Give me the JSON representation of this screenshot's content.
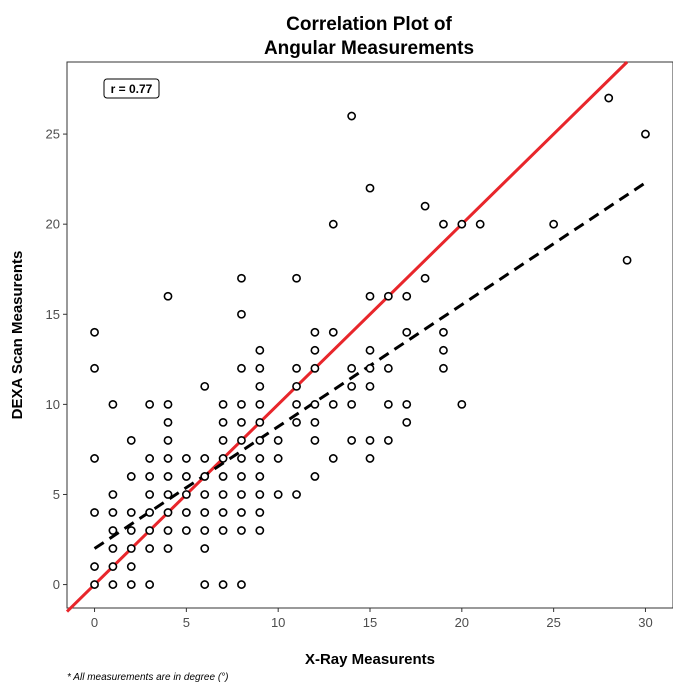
{
  "chart_data": {
    "type": "scatter",
    "title": "Correlation Plot of",
    "subtitle": "Angular Measurements",
    "xlabel": "X-Ray Measurents",
    "ylabel": "DEXA Scan Measurents",
    "xlim": [
      -1.5,
      31.5
    ],
    "ylim": [
      -1.3,
      29
    ],
    "xticks": [
      0,
      5,
      10,
      15,
      20,
      25,
      30
    ],
    "yticks": [
      0,
      5,
      10,
      15,
      20,
      25
    ],
    "grid": false,
    "annotation": "r = 0.77",
    "caption": "* All measurements are in degree (°)",
    "identity_line": {
      "slope": 1,
      "intercept": 0,
      "color": "#e8262b",
      "style": "solid"
    },
    "fit_line": {
      "x": [
        0,
        30
      ],
      "y": [
        2.0,
        22.3
      ],
      "color": "#000000",
      "style": "dashed"
    },
    "points": [
      [
        0,
        0
      ],
      [
        0,
        1
      ],
      [
        0,
        4
      ],
      [
        0,
        7
      ],
      [
        0,
        12
      ],
      [
        0,
        14
      ],
      [
        1,
        0
      ],
      [
        1,
        1
      ],
      [
        1,
        2
      ],
      [
        1,
        3
      ],
      [
        1,
        4
      ],
      [
        1,
        5
      ],
      [
        1,
        10
      ],
      [
        2,
        0
      ],
      [
        2,
        1
      ],
      [
        2,
        2
      ],
      [
        2,
        3
      ],
      [
        2,
        4
      ],
      [
        2,
        6
      ],
      [
        2,
        8
      ],
      [
        3,
        0
      ],
      [
        3,
        2
      ],
      [
        3,
        3
      ],
      [
        3,
        4
      ],
      [
        3,
        5
      ],
      [
        3,
        6
      ],
      [
        3,
        7
      ],
      [
        3,
        10
      ],
      [
        4,
        2
      ],
      [
        4,
        3
      ],
      [
        4,
        4
      ],
      [
        4,
        5
      ],
      [
        4,
        6
      ],
      [
        4,
        7
      ],
      [
        4,
        8
      ],
      [
        4,
        9
      ],
      [
        4,
        10
      ],
      [
        4,
        16
      ],
      [
        5,
        3
      ],
      [
        5,
        4
      ],
      [
        5,
        5
      ],
      [
        5,
        6
      ],
      [
        5,
        7
      ],
      [
        6,
        0
      ],
      [
        6,
        2
      ],
      [
        6,
        3
      ],
      [
        6,
        4
      ],
      [
        6,
        5
      ],
      [
        6,
        6
      ],
      [
        6,
        7
      ],
      [
        6,
        11
      ],
      [
        7,
        0
      ],
      [
        7,
        3
      ],
      [
        7,
        4
      ],
      [
        7,
        5
      ],
      [
        7,
        6
      ],
      [
        7,
        7
      ],
      [
        7,
        8
      ],
      [
        7,
        9
      ],
      [
        7,
        10
      ],
      [
        8,
        0
      ],
      [
        8,
        3
      ],
      [
        8,
        4
      ],
      [
        8,
        5
      ],
      [
        8,
        6
      ],
      [
        8,
        7
      ],
      [
        8,
        8
      ],
      [
        8,
        9
      ],
      [
        8,
        10
      ],
      [
        8,
        12
      ],
      [
        8,
        15
      ],
      [
        8,
        17
      ],
      [
        9,
        3
      ],
      [
        9,
        4
      ],
      [
        9,
        5
      ],
      [
        9,
        6
      ],
      [
        9,
        7
      ],
      [
        9,
        8
      ],
      [
        9,
        9
      ],
      [
        9,
        10
      ],
      [
        9,
        11
      ],
      [
        9,
        12
      ],
      [
        9,
        13
      ],
      [
        10,
        5
      ],
      [
        10,
        7
      ],
      [
        10,
        8
      ],
      [
        11,
        5
      ],
      [
        11,
        9
      ],
      [
        11,
        10
      ],
      [
        11,
        11
      ],
      [
        11,
        12
      ],
      [
        11,
        17
      ],
      [
        12,
        6
      ],
      [
        12,
        8
      ],
      [
        12,
        9
      ],
      [
        12,
        10
      ],
      [
        12,
        12
      ],
      [
        12,
        13
      ],
      [
        12,
        14
      ],
      [
        13,
        7
      ],
      [
        13,
        10
      ],
      [
        13,
        14
      ],
      [
        13,
        20
      ],
      [
        14,
        8
      ],
      [
        14,
        10
      ],
      [
        14,
        11
      ],
      [
        14,
        12
      ],
      [
        14,
        26
      ],
      [
        15,
        7
      ],
      [
        15,
        8
      ],
      [
        15,
        11
      ],
      [
        15,
        12
      ],
      [
        15,
        13
      ],
      [
        15,
        16
      ],
      [
        15,
        22
      ],
      [
        16,
        8
      ],
      [
        16,
        10
      ],
      [
        16,
        12
      ],
      [
        16,
        16
      ],
      [
        17,
        9
      ],
      [
        17,
        10
      ],
      [
        17,
        14
      ],
      [
        17,
        16
      ],
      [
        18,
        17
      ],
      [
        18,
        21
      ],
      [
        19,
        12
      ],
      [
        19,
        13
      ],
      [
        19,
        14
      ],
      [
        19,
        20
      ],
      [
        20,
        10
      ],
      [
        20,
        20
      ],
      [
        21,
        20
      ],
      [
        25,
        20
      ],
      [
        28,
        27
      ],
      [
        29,
        18
      ],
      [
        30,
        25
      ]
    ]
  }
}
